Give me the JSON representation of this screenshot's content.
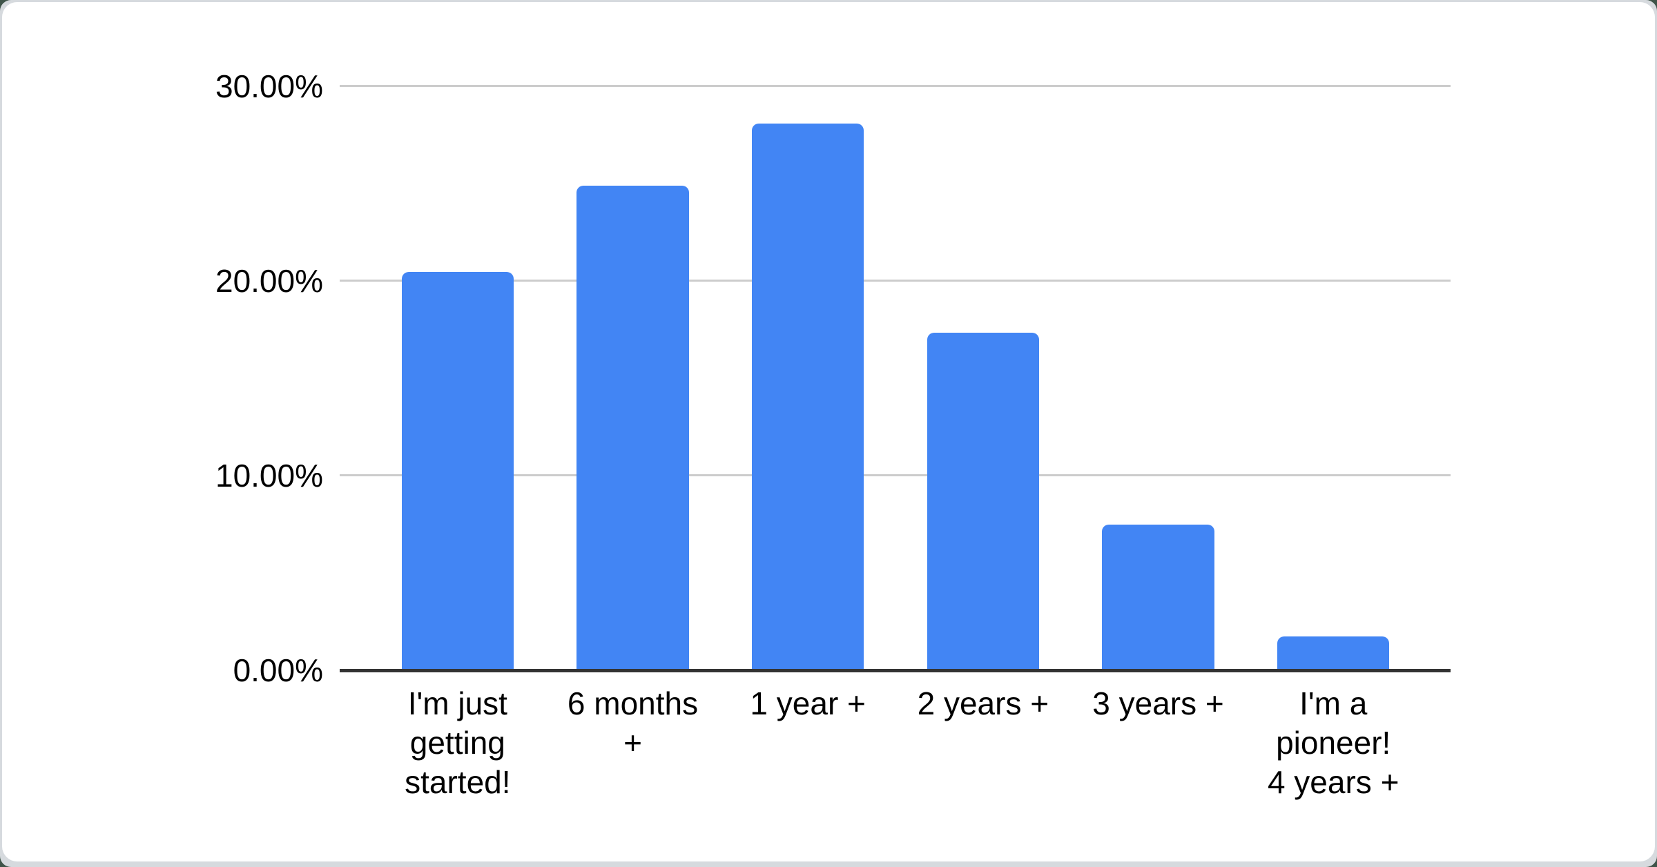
{
  "page": {
    "background_color": "#3f5449",
    "frame_color": "#d6dade",
    "card_color": "#ffffff"
  },
  "chart_data": {
    "type": "bar",
    "categories": [
      "I'm just\ngetting\nstarted!",
      "6 months\n+",
      "1 year +",
      "2 years +",
      "3 years +",
      "I'm a\npioneer!\n4 years +"
    ],
    "values": [
      20.45,
      24.9,
      28.1,
      17.35,
      7.5,
      1.75
    ],
    "ylim": [
      0,
      30
    ],
    "yticks": [
      {
        "label": "30.00%",
        "value": 30
      },
      {
        "label": "20.00%",
        "value": 20
      },
      {
        "label": "10.00%",
        "value": 10
      },
      {
        "label": "0.00%",
        "value": 0
      }
    ],
    "bar_color": "#4285F4",
    "gridline_color": "#cccccc",
    "axis_color": "#333333",
    "label_color": "#000000",
    "grid": true,
    "legend": "none"
  }
}
